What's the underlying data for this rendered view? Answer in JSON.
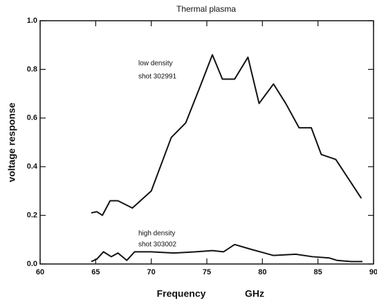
{
  "chart_data": {
    "type": "line",
    "title": "Thermal plasma",
    "xlabel": [
      "Frequency",
      "GHz"
    ],
    "ylabel": "voltage response",
    "xlim": [
      60,
      90
    ],
    "xticks": [
      60,
      65,
      70,
      75,
      80,
      85,
      90
    ],
    "ylim": [
      0,
      1
    ],
    "yticks": [
      {
        "value": 0,
        "label": "0.0"
      },
      0.2,
      0.4,
      0.6,
      0.8,
      {
        "value": 1,
        "label": "1.0"
      }
    ],
    "annotations": [
      "low density",
      "shot 302991",
      "high density",
      "shot 303002"
    ],
    "series": [
      {
        "color": "#111111",
        "x": [
          64.6,
          65.1,
          65.6,
          66.3,
          67.0,
          68.3,
          70.0,
          71.8,
          73.1,
          74.4,
          75.5,
          76.4,
          77.5,
          78.7,
          79.7,
          81.0,
          82.1,
          83.3,
          84.4,
          85.3,
          86.6,
          88.9
        ],
        "values": [
          0.21,
          0.215,
          0.2,
          0.26,
          0.26,
          0.23,
          0.3,
          0.52,
          0.58,
          0.73,
          0.86,
          0.76,
          0.76,
          0.85,
          0.66,
          0.74,
          0.66,
          0.56,
          0.56,
          0.45,
          0.43,
          0.27
        ]
      },
      {
        "color": "#111111",
        "x": [
          64.6,
          65.1,
          65.7,
          66.4,
          67.0,
          67.8,
          68.5,
          70.0,
          72.0,
          74.0,
          75.5,
          76.5,
          77.5,
          79.0,
          81.0,
          83.0,
          84.5,
          86.0,
          86.7,
          88.0,
          89.0
        ],
        "values": [
          0.01,
          0.02,
          0.05,
          0.03,
          0.045,
          0.015,
          0.05,
          0.05,
          0.045,
          0.05,
          0.055,
          0.05,
          0.08,
          0.06,
          0.035,
          0.04,
          0.03,
          0.025,
          0.015,
          0.01,
          0.01
        ]
      }
    ]
  }
}
